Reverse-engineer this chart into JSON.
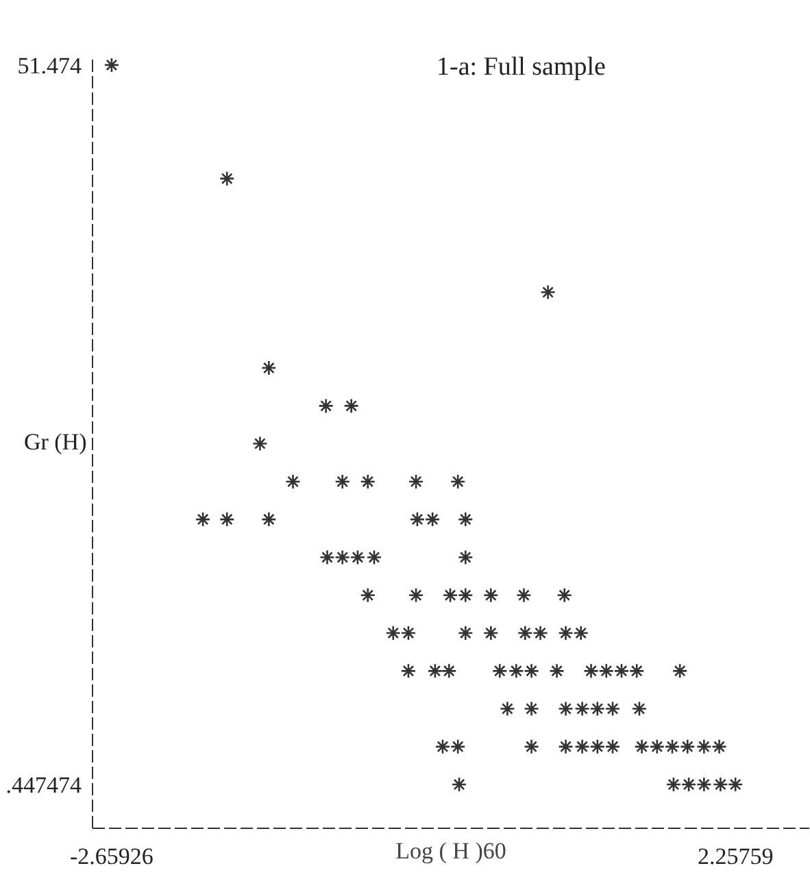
{
  "chart_data": {
    "type": "scatter",
    "title": "1-a: Full sample",
    "xlabel": "Log ( H )60",
    "ylabel": "Gr (H)",
    "xlim": [
      -2.81,
      2.84
    ],
    "ylim": [
      -2.66,
      52.15
    ],
    "xticks": [
      -2.65926,
      2.25759
    ],
    "yticks": [
      {
        "value": 0.447474,
        "label": ".447474"
      },
      51.474
    ],
    "grid": false,
    "marker": "cross",
    "series": [
      {
        "color": "#333333",
        "x": [
          -2.65926,
          -1.75,
          0.78,
          -1.42,
          -0.97,
          -0.77,
          -1.49,
          -1.23,
          -0.84,
          -0.64,
          -0.26,
          0.07,
          -1.94,
          -1.75,
          -1.42,
          -0.25,
          -0.13,
          0.13,
          -0.96,
          -0.84,
          -0.72,
          -0.59,
          0.13,
          -0.64,
          -0.26,
          0.01,
          0.13,
          0.33,
          0.59,
          0.91,
          -0.44,
          -0.32,
          0.13,
          0.33,
          0.6,
          0.72,
          0.92,
          1.04,
          -0.32,
          -0.11,
          0.0,
          0.4,
          0.53,
          0.65,
          0.85,
          1.12,
          1.24,
          1.36,
          1.48,
          1.82,
          0.46,
          0.65,
          0.92,
          1.05,
          1.17,
          1.29,
          1.5,
          -0.05,
          0.07,
          0.65,
          0.92,
          1.05,
          1.17,
          1.29,
          1.52,
          1.64,
          1.76,
          1.88,
          2.01,
          2.13,
          0.08,
          1.77,
          1.89,
          2.01,
          2.14,
          2.25759
        ],
        "values": [
          51.474,
          43.42,
          35.36,
          29.99,
          27.3,
          27.3,
          24.62,
          21.93,
          21.93,
          21.93,
          21.93,
          21.93,
          19.25,
          19.25,
          19.25,
          19.25,
          19.25,
          19.25,
          16.56,
          16.56,
          16.56,
          16.56,
          16.56,
          13.87,
          13.87,
          13.87,
          13.87,
          13.87,
          13.87,
          13.87,
          11.19,
          11.19,
          11.19,
          11.19,
          11.19,
          11.19,
          11.19,
          11.19,
          8.5,
          8.5,
          8.5,
          8.5,
          8.5,
          8.5,
          8.5,
          8.5,
          8.5,
          8.5,
          8.5,
          8.5,
          5.82,
          5.82,
          5.82,
          5.82,
          5.82,
          5.82,
          5.82,
          3.13,
          3.13,
          3.13,
          3.13,
          3.13,
          3.13,
          3.13,
          3.13,
          3.13,
          3.13,
          3.13,
          3.13,
          3.13,
          0.447474,
          0.447474,
          0.447474,
          0.447474,
          0.447474,
          0.447474
        ]
      }
    ]
  }
}
